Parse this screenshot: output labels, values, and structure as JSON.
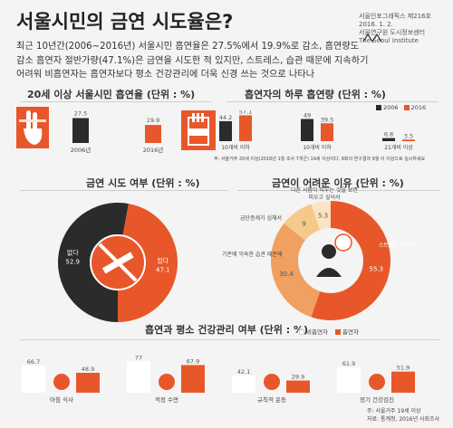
{
  "header": {
    "title": "서울시민의 금연 시도율은?",
    "source_lines": [
      "서울인포그래픽스 제216호 2016. 1. 2.",
      "서울연구원 도시정보센터",
      "The Seoul Institute"
    ],
    "intro": "최근 10년간(2006~2016년) 서울시민 흡연율은 27.5%에서 19.9%로 감소, 흡연량도 감소 흡연자 절반가량(47.1%)은 금연을 시도한 적 있지만, 스트레스, 습관 때문에 지속하기 어려워 비흡연자는 흡연자보다 평소 건강관리에 더욱 신경 쓰는 것으로 나타나"
  },
  "colors": {
    "orange": "#e8572a",
    "dark": "#2b2b2b",
    "light_orange": "#f2b07a",
    "white": "#ffffff",
    "gray_bg": "#e9e9e9"
  },
  "chart_data": [
    {
      "id": "smoking_rate",
      "type": "bar",
      "title": "20세 이상 서울시민 흡연율 (단위 : %)",
      "categories": [
        "2006년",
        "2016년"
      ],
      "values": [
        27.5,
        19.9
      ],
      "colors": [
        "#2b2b2b",
        "#e8572a"
      ]
    },
    {
      "id": "daily_amount",
      "type": "bar",
      "title": "흡연자의 하루 흡연량 (단위 : %)",
      "legend": [
        "2006",
        "2016"
      ],
      "categories": [
        "10개비 이하",
        "10개비 이하",
        "21개비 이상"
      ],
      "series": [
        {
          "name": "2006",
          "values": [
            44.2,
            49.0,
            6.8
          ]
        },
        {
          "name": "2016",
          "values": [
            57.1,
            39.5,
            3.5
          ]
        }
      ],
      "note": "주: 서울거주 20세 이상(2016년 1월 조사 7개군) 19세 이상이다. 9회의 연구결과 9월 이 이상으로 실시하세요"
    },
    {
      "id": "quit_attempt",
      "type": "pie",
      "title": "금연 시도 여부 (단위 : %)",
      "labels": [
        "없다",
        "있다"
      ],
      "values": [
        52.9,
        47.1
      ],
      "colors": [
        "#2b2b2b",
        "#e8572a"
      ]
    },
    {
      "id": "quit_difficulty",
      "type": "pie",
      "title": "금연이 어려운 이유 (단위 : %)",
      "labels": [
        "스트레스 때문에",
        "기존에 익숙한 습관 때문에",
        "금단증세가 심해서",
        "다른 사람이 피우는 것을 보면 피우고 싶어서"
      ],
      "values": [
        55.3,
        30.4,
        9.0,
        5.3
      ],
      "colors": [
        "#e8572a",
        "#f0a060",
        "#f5c98a",
        "#fbe3c3"
      ]
    },
    {
      "id": "health_care",
      "type": "bar",
      "title": "흡연과 평소 건강관리 여부 (단위 : %)",
      "legend": [
        "비흡연자",
        "흡연자"
      ],
      "categories": [
        "아침 식사",
        "적정 수면",
        "규칙적 운동",
        "정기 건강검진"
      ],
      "series": [
        {
          "name": "비흡연자",
          "values": [
            66.7,
            77.0,
            42.1,
            61.9
          ]
        },
        {
          "name": "흡연자",
          "values": [
            48.9,
            67.9,
            29.9,
            51.9
          ]
        }
      ],
      "note": "주: 서울거주 19세 이상",
      "source": "자료: 통계청, 2016년 사회조사"
    }
  ]
}
